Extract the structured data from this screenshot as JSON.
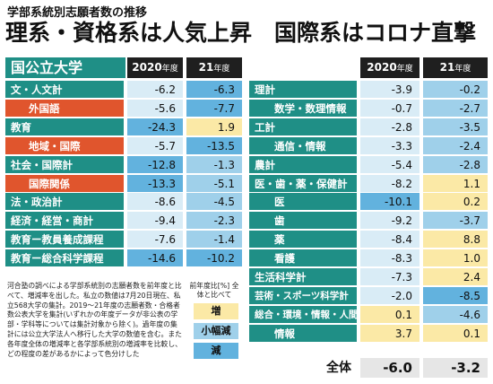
{
  "subtitle": "学部系統別志願者数の推移",
  "title": "理系・資格系は人気上昇　国際系はコロナ直撃",
  "panel_label": "国公立大学",
  "year_headers": [
    {
      "year": "2020",
      "suffix": "年度"
    },
    {
      "year": "21",
      "suffix": "年度"
    }
  ],
  "colors": {
    "teal": "#1f8f86",
    "orange": "#e0552d",
    "pale_blue": "#d9ecf6",
    "light_blue": "#9fd0ea",
    "mid_blue": "#62b2de",
    "yellow": "#fbe9a6"
  },
  "chart_data": {
    "type": "table",
    "title": "学部系統別志願者数の推移",
    "unit": "前年度比[%]",
    "columns": [
      "2020年度",
      "21年度"
    ],
    "left_rows": [
      {
        "label": "文・人文計",
        "kind": "total",
        "v2020": -6.2,
        "v2021": -6.3,
        "c2020": "pale",
        "c2021": "mid"
      },
      {
        "label": "外国語",
        "kind": "sub",
        "v2020": -5.6,
        "v2021": -7.7,
        "c2020": "pale",
        "c2021": "mid"
      },
      {
        "label": "教育",
        "kind": "total",
        "v2020": -24.3,
        "v2021": 1.9,
        "c2020": "mid",
        "c2021": "yellow"
      },
      {
        "label": "地域・国際",
        "kind": "sub",
        "v2020": -5.7,
        "v2021": -13.5,
        "c2020": "pale",
        "c2021": "mid"
      },
      {
        "label": "社会・国際計",
        "kind": "total",
        "v2020": -12.8,
        "v2021": -1.3,
        "c2020": "mid",
        "c2021": "light"
      },
      {
        "label": "国際関係",
        "kind": "sub",
        "v2020": -13.3,
        "v2021": -5.1,
        "c2020": "mid",
        "c2021": "light"
      },
      {
        "label": "法・政治計",
        "kind": "total",
        "v2020": -8.6,
        "v2021": -4.5,
        "c2020": "pale",
        "c2021": "light"
      },
      {
        "label": "経済・経営・商計",
        "kind": "total",
        "v2020": -9.4,
        "v2021": -2.3,
        "c2020": "pale",
        "c2021": "light"
      },
      {
        "label": "教育ー教員養成課程",
        "kind": "total",
        "v2020": -7.6,
        "v2021": -1.4,
        "c2020": "pale",
        "c2021": "light"
      },
      {
        "label": "教育ー総合科学課程",
        "kind": "total",
        "v2020": -14.6,
        "v2021": -10.2,
        "c2020": "mid",
        "c2021": "mid"
      }
    ],
    "right_rows": [
      {
        "label": "理計",
        "kind": "total",
        "v2020": -3.9,
        "v2021": -0.2,
        "c2020": "pale",
        "c2021": "light"
      },
      {
        "label": "数学・数理情報",
        "kind": "sub",
        "v2020": -0.7,
        "v2021": -2.7,
        "c2020": "pale",
        "c2021": "light"
      },
      {
        "label": "工計",
        "kind": "total",
        "v2020": -2.8,
        "v2021": -3.5,
        "c2020": "pale",
        "c2021": "light"
      },
      {
        "label": "通信・情報",
        "kind": "sub",
        "v2020": -3.3,
        "v2021": -2.4,
        "c2020": "pale",
        "c2021": "light"
      },
      {
        "label": "農計",
        "kind": "total",
        "v2020": -5.4,
        "v2021": -2.8,
        "c2020": "pale",
        "c2021": "light"
      },
      {
        "label": "医・歯・薬・保健計",
        "kind": "total",
        "v2020": -8.2,
        "v2021": 1.1,
        "c2020": "pale",
        "c2021": "yellow"
      },
      {
        "label": "医",
        "kind": "sub",
        "v2020": -10.1,
        "v2021": 0.2,
        "c2020": "mid",
        "c2021": "yellow"
      },
      {
        "label": "歯",
        "kind": "sub",
        "v2020": -9.2,
        "v2021": -3.7,
        "c2020": "pale",
        "c2021": "light"
      },
      {
        "label": "薬",
        "kind": "sub",
        "v2020": -8.4,
        "v2021": 8.8,
        "c2020": "pale",
        "c2021": "yellow"
      },
      {
        "label": "看護",
        "kind": "sub",
        "v2020": -8.3,
        "v2021": 1.0,
        "c2020": "pale",
        "c2021": "yellow"
      },
      {
        "label": "生活科学計",
        "kind": "total",
        "v2020": -7.3,
        "v2021": 2.4,
        "c2020": "pale",
        "c2021": "yellow"
      },
      {
        "label": "芸術・スポーツ科学計",
        "kind": "total",
        "v2020": -2.0,
        "v2021": -8.5,
        "c2020": "pale",
        "c2021": "mid"
      },
      {
        "label": "総合・環境・情報・人間計",
        "kind": "total",
        "v2020": 0.1,
        "v2021": -4.6,
        "c2020": "yellow",
        "c2021": "light"
      },
      {
        "label": "情報",
        "kind": "sub",
        "v2020": 3.7,
        "v2021": 0.1,
        "c2020": "yellow",
        "c2021": "yellow"
      }
    ],
    "grand_total": {
      "label": "全体",
      "v2020": -6.0,
      "v2021": -3.2
    }
  },
  "footnote": "河合塾の調べによる学部系統別の志願者数を前年度と比べて、増減率を出した。私立の数値は7月20日現在、私立568大学の集計。2019～21年度の志願者数・合格者数公表大学を集計(いずれかの年度データが非公表の学部・学科等については集計対象から除く)。過年度の集計には公立大学法人へ移行した大学の数値を含む。また各年度全体の増減率と各学部系統別の増減率を比較し、どの程度の差があるかによって色分けした",
  "legend": {
    "title": "前年度比[%] 全体と比べて",
    "items": [
      {
        "label": "増",
        "color": "yellow"
      },
      {
        "label": "小幅減",
        "color": "light"
      },
      {
        "label": "減",
        "color": "mid"
      }
    ]
  }
}
